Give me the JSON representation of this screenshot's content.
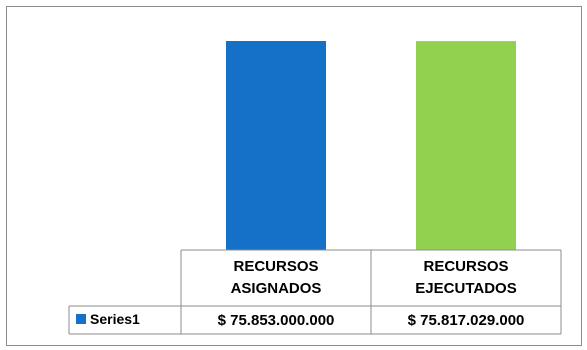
{
  "chart_data": {
    "type": "bar",
    "categories": [
      [
        "RECURSOS",
        "ASIGNADOS"
      ],
      [
        "RECURSOS",
        "EJECUTADOS"
      ]
    ],
    "series": [
      {
        "name": "Series1",
        "values": [
          75853000000,
          75817029000
        ],
        "value_labels": [
          "$ 75.853.000.000",
          "$ 75.817.029.000"
        ],
        "colors": [
          "#1570C8",
          "#92D050"
        ]
      }
    ],
    "legend_color": "#1570C8",
    "ylim": [
      0,
      75853000000
    ],
    "data_table": true,
    "grid": false,
    "legend": "data-table"
  }
}
